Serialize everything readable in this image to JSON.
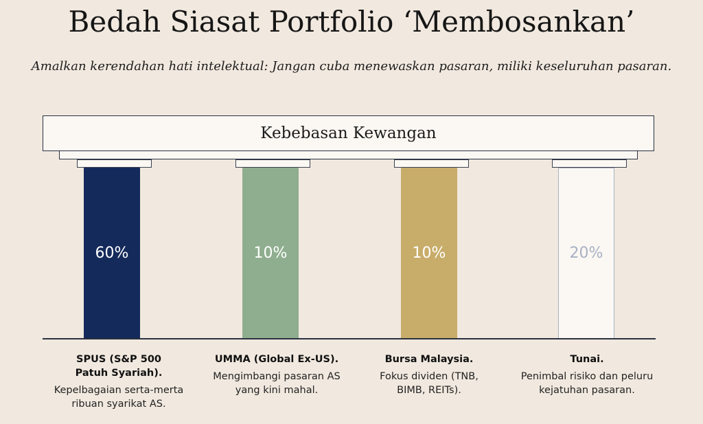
{
  "title": "Bedah Siasat Portfolio ‘Membosankan’",
  "subtitle": "Amalkan kerendahan hati intelektual: Jangan cuba menewaskan pasaran, miliki keseluruhan pasaran.",
  "roof_label": "Kebebasan Kewangan",
  "pillars": [
    {
      "value": "60%",
      "fill": "#142a5b",
      "border": "#142a5b",
      "text_color": "#ffffff",
      "heading": "SPUS (S&P 500 Patuh Syariah).",
      "desc": "Kepelbagaian serta-merta ribuan syarikat AS."
    },
    {
      "value": "10%",
      "fill": "#8fae8f",
      "border": "#8fae8f",
      "text_color": "#ffffff",
      "heading": "UMMA (Global Ex-US).",
      "desc": "Mengimbangi pasaran AS yang kini mahal."
    },
    {
      "value": "10%",
      "fill": "#c8ac6a",
      "border": "#c8ac6a",
      "text_color": "#ffffff",
      "heading": "Bursa Malaysia.",
      "desc": "Fokus dividen (TNB, BIMB, REITs)."
    },
    {
      "value": "20%",
      "fill": "#fbf8f3",
      "border": "#a8b0c4",
      "text_color": "#a8b0c4",
      "heading": "Tunai.",
      "desc": "Penimbal risiko dan peluru kejatuhan pasaran."
    }
  ]
}
